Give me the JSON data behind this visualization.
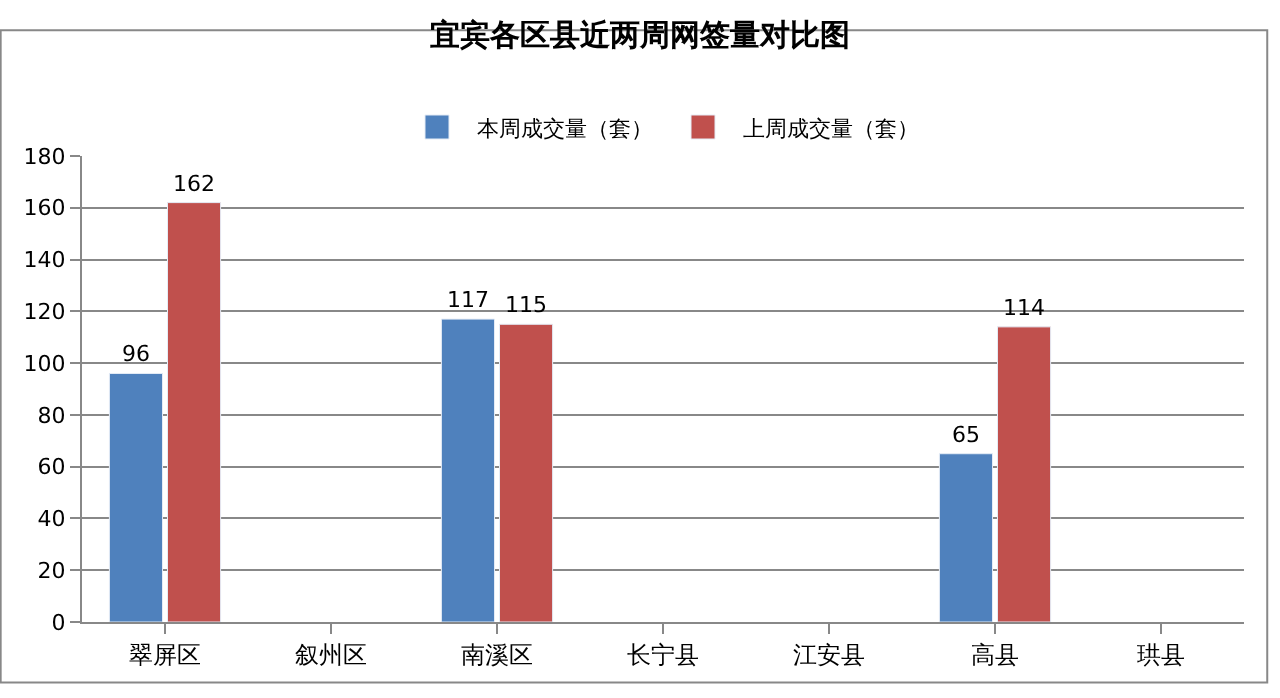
{
  "chart_data": {
    "type": "bar",
    "title": "宜宾各区县近两周网签量对比图",
    "categories": [
      "翠屏区",
      "叙州区",
      "南溪区",
      "长宁县",
      "江安县",
      "高县",
      "珙县"
    ],
    "series": [
      {
        "name": "本周成交量（套）",
        "color": "#4f81bd",
        "values": [
          96,
          null,
          117,
          null,
          null,
          65,
          null
        ]
      },
      {
        "name": "上周成交量（套）",
        "color": "#c0504d",
        "values": [
          162,
          null,
          115,
          null,
          null,
          114,
          null
        ]
      }
    ],
    "ylim": [
      0,
      180
    ],
    "yticks": [
      0,
      20,
      40,
      60,
      80,
      100,
      120,
      140,
      160,
      180
    ],
    "grid": "y",
    "legend": "top",
    "data_labels": true
  }
}
